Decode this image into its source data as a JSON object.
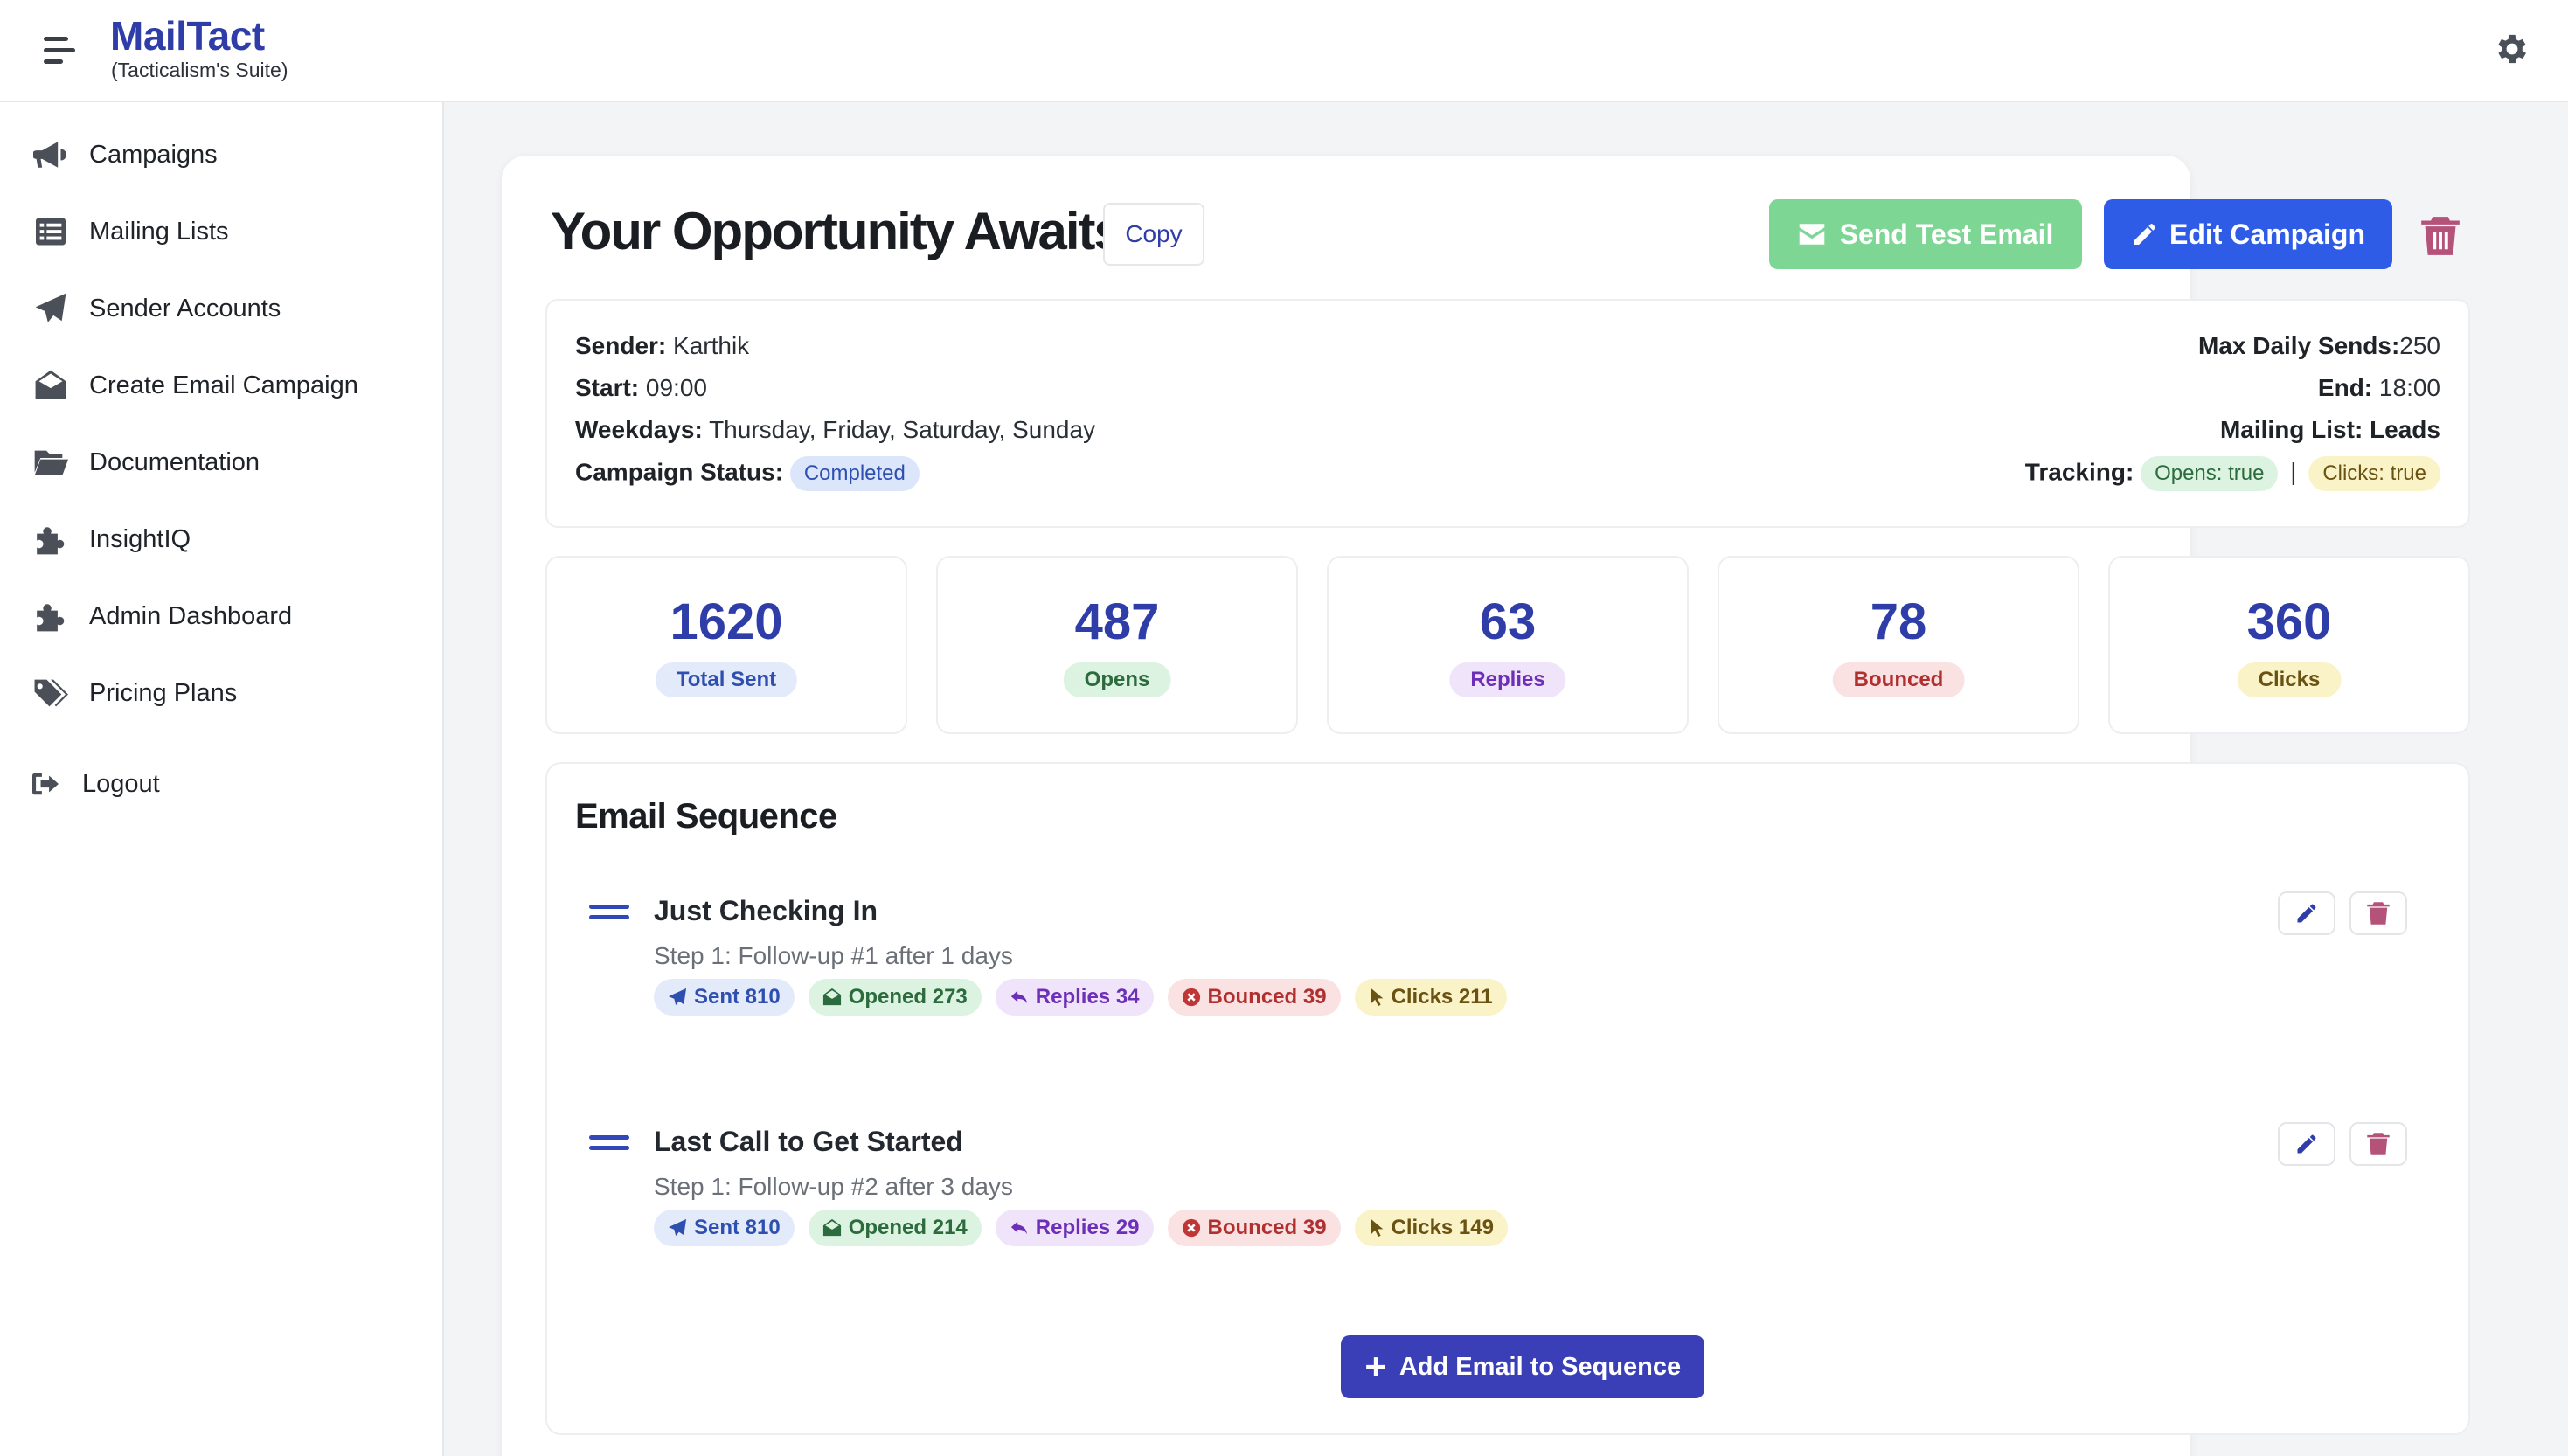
{
  "brand": {
    "title": "MailTact",
    "subtitle": "(Tacticalism's Suite)"
  },
  "icons": {
    "menu": "hamburger-icon",
    "settings": "gear-icon",
    "campaigns": "megaphone-icon",
    "mailing_lists": "list-icon",
    "sender_accounts": "paper-plane-icon",
    "create_campaign": "envelope-open-icon",
    "documentation": "folder-open-icon",
    "insightiq": "puzzle-icon",
    "admin": "puzzle-icon",
    "pricing": "tags-icon",
    "logout": "sign-out-icon",
    "trash": "trash-icon",
    "edit": "pencil-icon",
    "drag": "drag-handle-icon",
    "add": "plus-icon"
  },
  "sidebar": {
    "items": [
      {
        "label": "Campaigns"
      },
      {
        "label": "Mailing Lists"
      },
      {
        "label": "Sender Accounts"
      },
      {
        "label": "Create Email Campaign"
      },
      {
        "label": "Documentation"
      },
      {
        "label": "InsightIQ"
      },
      {
        "label": "Admin Dashboard"
      },
      {
        "label": "Pricing Plans"
      }
    ],
    "logout": "Logout"
  },
  "campaign": {
    "title": "Your Opportunity Awaits",
    "copy_label": "Copy",
    "send_test_label": "Send Test Email",
    "edit_label": "Edit Campaign",
    "info": {
      "sender_label": "Sender:",
      "sender": "Karthik",
      "start_label": "Start:",
      "start": "09:00",
      "weekdays_label": "Weekdays:",
      "weekdays": "Thursday, Friday, Saturday, Sunday",
      "status_label": "Campaign Status:",
      "status": "Completed",
      "max_daily_label": "Max Daily Sends:",
      "max_daily": "250",
      "end_label": "End:",
      "end": "18:00",
      "mailing_list_label": "Mailing List:",
      "mailing_list": "Leads",
      "tracking_label": "Tracking:",
      "tracking_opens": "Opens: true",
      "tracking_sep": "|",
      "tracking_clicks": "Clicks: true"
    }
  },
  "stats": [
    {
      "value": "1620",
      "label": "Total Sent"
    },
    {
      "value": "487",
      "label": "Opens"
    },
    {
      "value": "63",
      "label": "Replies"
    },
    {
      "value": "78",
      "label": "Bounced"
    },
    {
      "value": "360",
      "label": "Clicks"
    }
  ],
  "sequence": {
    "title": "Email Sequence",
    "items": [
      {
        "title": "Just Checking In",
        "step": "Step 1: Follow-up #1 after 1 days",
        "sent": "Sent 810",
        "opened": "Opened 273",
        "replies": "Replies 34",
        "bounced": "Bounced 39",
        "clicks": "Clicks 211"
      },
      {
        "title": "Last Call to Get Started",
        "step": "Step 1: Follow-up #2 after 3 days",
        "sent": "Sent 810",
        "opened": "Opened 214",
        "replies": "Replies 29",
        "bounced": "Bounced 39",
        "clicks": "Clicks 149"
      }
    ],
    "add_label": "Add Email to Sequence"
  },
  "colors": {
    "brand": "#2f3da8",
    "send_test": "#7dd694",
    "edit": "#2f5ce6",
    "add": "#3a3fb8",
    "trash": "#b5527a"
  }
}
